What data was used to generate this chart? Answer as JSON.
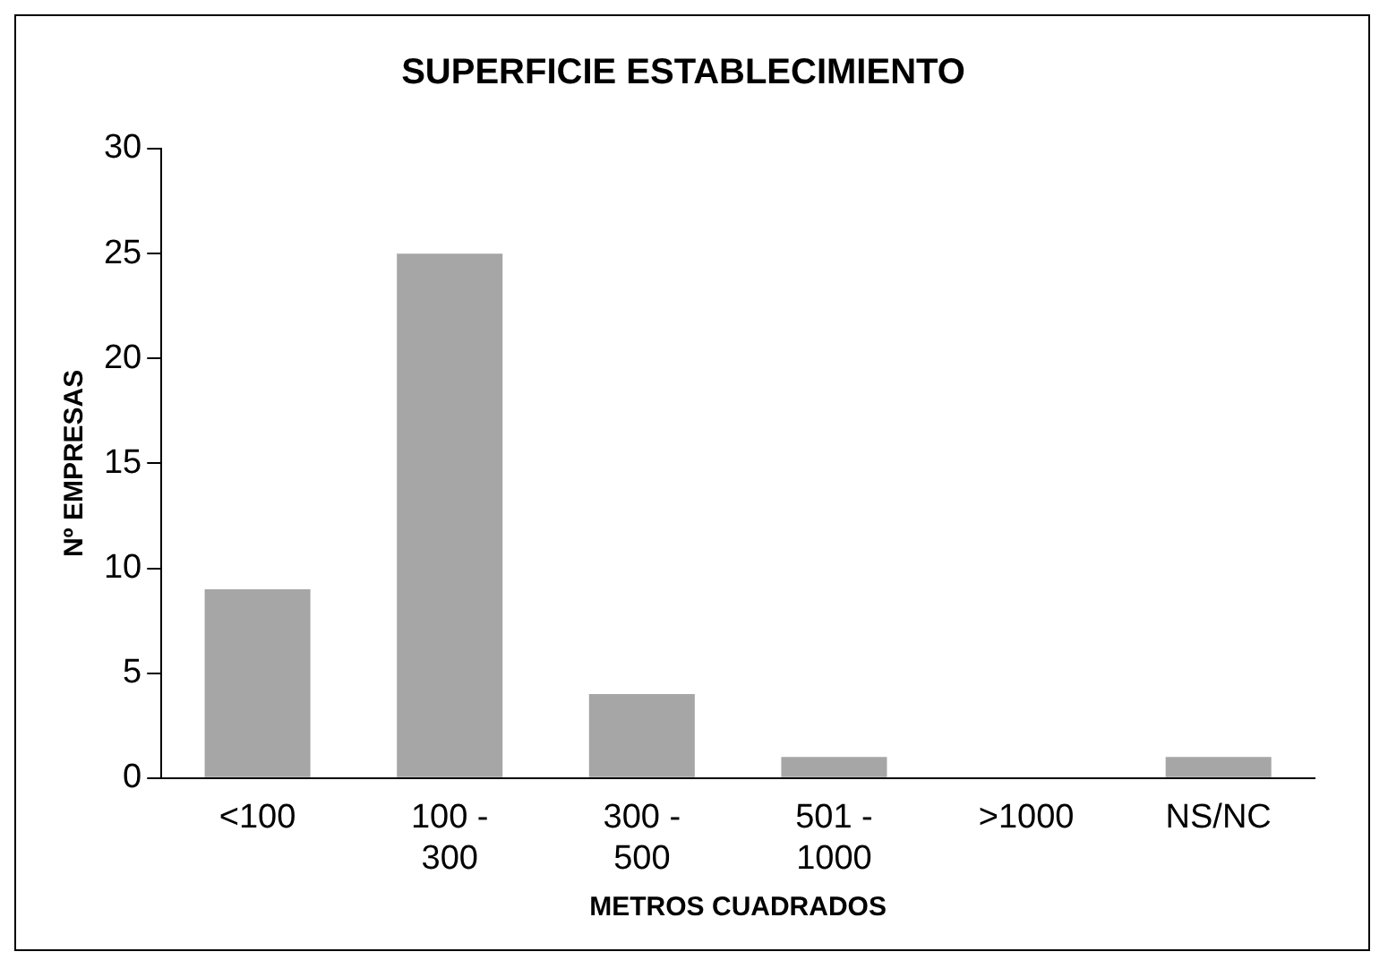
{
  "chart_data": {
    "type": "bar",
    "title": "SUPERFICIE ESTABLECIMIENTO",
    "xlabel": "METROS CUADRADOS",
    "ylabel": "Nº EMPRESAS",
    "categories": [
      "<100",
      "100 - 300",
      "300 - 500",
      "501 - 1000",
      ">1000",
      "NS/NC"
    ],
    "values": [
      9,
      25,
      4,
      1,
      0,
      1
    ],
    "color": "#a6a6a6",
    "ylim": [
      0,
      30
    ],
    "yticks": [
      0,
      5,
      10,
      15,
      20,
      25,
      30
    ],
    "grid": false,
    "legend": false
  }
}
